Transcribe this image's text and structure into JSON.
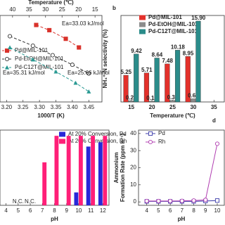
{
  "chart_data": [
    {
      "type": "line",
      "xlabel": "1000/T (K)",
      "x2label": "Temperature (℃)",
      "xlim": [
        3.18,
        3.49
      ],
      "xticks": [
        {
          "value": 3.2,
          "label": "3.20"
        },
        3.25,
        {
          "value": 3.3,
          "label": "3.30"
        },
        3.35,
        {
          "value": 3.4,
          "label": "3.40"
        },
        3.45
      ],
      "x2lim": [
        43.8,
        12.9
      ],
      "x2ticks": [
        40,
        35,
        30,
        25,
        20,
        15
      ],
      "ylim": [
        0,
        10
      ],
      "dashed": true,
      "series": [
        {
          "name": "Pd@MIL-101",
          "color": "#d9322b",
          "marker": "square",
          "x": [
            3.29,
            3.33,
            3.38,
            3.42
          ],
          "values": [
            8.9,
            8.3,
            7.3,
            6.3
          ]
        },
        {
          "name": "Pd-EtOH@MIL-101",
          "color": "#333333",
          "marker": "circle",
          "x": [
            3.21,
            3.28,
            3.34,
            3.4,
            3.45
          ],
          "values": [
            7.6,
            6.5,
            5.4,
            4.3,
            3.3
          ]
        },
        {
          "name": "Pd-C12T@MIL-101",
          "color": "#2a9a93",
          "marker": "triangle",
          "x": [
            3.21,
            3.28,
            3.35,
            3.41,
            3.45
          ],
          "values": [
            6.3,
            4.9,
            3.5,
            2.2,
            1.2
          ]
        }
      ],
      "annotations": [
        "Ea=33.03 kJ/mol",
        "Ea=35.31 kJ/mol",
        "Ea=25.66 kJ/mol"
      ],
      "legend": "upper left"
    },
    {
      "type": "bar",
      "panel_label": "b",
      "xlabel": "Temperature (℃)",
      "ylabel": "NH₄⁺-N selectivity (%)",
      "categories": [
        "15",
        "20",
        "25",
        "30",
        "35"
      ],
      "ylim": [
        0,
        17
      ],
      "series": [
        {
          "name": "Pd@MIL-101",
          "color": "#e3312b",
          "values": [
            5.25,
            5.71,
            7.48,
            8.95,
            null
          ],
          "value_labels": [
            "5.25",
            "5.71",
            "7.48",
            "8.95",
            null
          ]
        },
        {
          "name": "Pd-EtOH@MIL-101",
          "color": "#8c8c8c",
          "values": [
            0.23,
            0.15,
            0.31,
            0.62,
            null
          ],
          "value_labels": [
            "0.23",
            "0.15",
            "0.31",
            "0.62",
            null
          ]
        },
        {
          "name": "Pd-C12T@MIL-101",
          "color": "#2b8c8a",
          "values": [
            9.42,
            8.64,
            10.18,
            15.9,
            null
          ],
          "value_labels": [
            "9.42",
            "8.64",
            "10.18",
            "15.90",
            null
          ]
        }
      ],
      "legend": "upper left"
    },
    {
      "type": "bar",
      "xlabel": "pH",
      "categories": [
        "4",
        "5",
        "6",
        "7",
        "8",
        "9",
        "10",
        "11",
        "12"
      ],
      "ylim": [
        0,
        1.05
      ],
      "series": [
        {
          "name": "At 20% Conversion, Pd",
          "color": "#2727d8",
          "values": [
            null,
            null,
            null,
            null,
            null,
            null,
            0.18,
            0.82,
            0.88
          ]
        },
        {
          "name": "At 20% Conversion, Rh",
          "color": "#ff1f78",
          "values": [
            null,
            null,
            null,
            0.6,
            0.97,
            0.97,
            0.97,
            0.97,
            0.97
          ]
        }
      ],
      "annotations": [
        "N.C.",
        "N.C."
      ],
      "legend": "upper left"
    },
    {
      "type": "line",
      "panel_label": "d",
      "xlabel": "pH",
      "ylabel": [
        "Ammonium",
        "Formation Rate (ppm h⁻¹)"
      ],
      "x": [
        4,
        5,
        6,
        7,
        8,
        9,
        10
      ],
      "xlim": [
        3.3,
        10.6
      ],
      "xticks": [
        4,
        5,
        6,
        7,
        8,
        9,
        10
      ],
      "ylim": [
        -2,
        42
      ],
      "yticks": [
        0,
        10,
        20,
        30,
        40
      ],
      "dashed": false,
      "series": [
        {
          "name": "Pd",
          "color": "#3a3aa8",
          "marker": "open-square",
          "values": [
            0.3,
            0.3,
            0.3,
            0.3,
            0.3,
            0.5,
            0.8
          ]
        },
        {
          "name": "Rh",
          "color": "#b03cb0",
          "marker": "open-circle",
          "values": [
            0.5,
            0.5,
            0.5,
            0.6,
            0.8,
            1.2,
            34
          ]
        }
      ],
      "legend": "upper left"
    }
  ]
}
